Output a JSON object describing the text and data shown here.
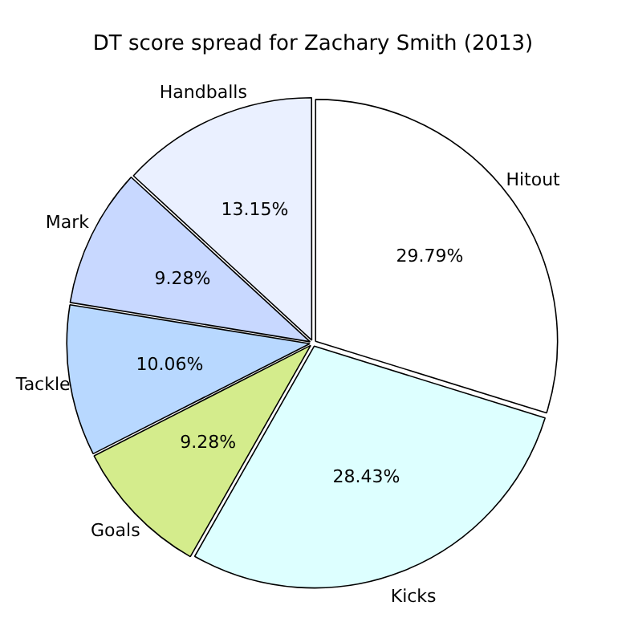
{
  "chart_data": {
    "type": "pie",
    "title": "DT score spread for Zachary Smith (2013)",
    "categories": [
      "Hitout",
      "Kicks",
      "Goals",
      "Tackle",
      "Mark",
      "Handballs"
    ],
    "values": [
      29.79,
      28.43,
      9.28,
      10.06,
      9.28,
      13.15
    ],
    "value_labels": [
      "29.79%",
      "28.43%",
      "9.28%",
      "10.06%",
      "9.28%",
      "13.15%"
    ],
    "colors": [
      "#ffffff",
      "#ddffff",
      "#d4ec8c",
      "#b8d8ff",
      "#c8d8ff",
      "#eaf0ff"
    ],
    "legend": false
  }
}
